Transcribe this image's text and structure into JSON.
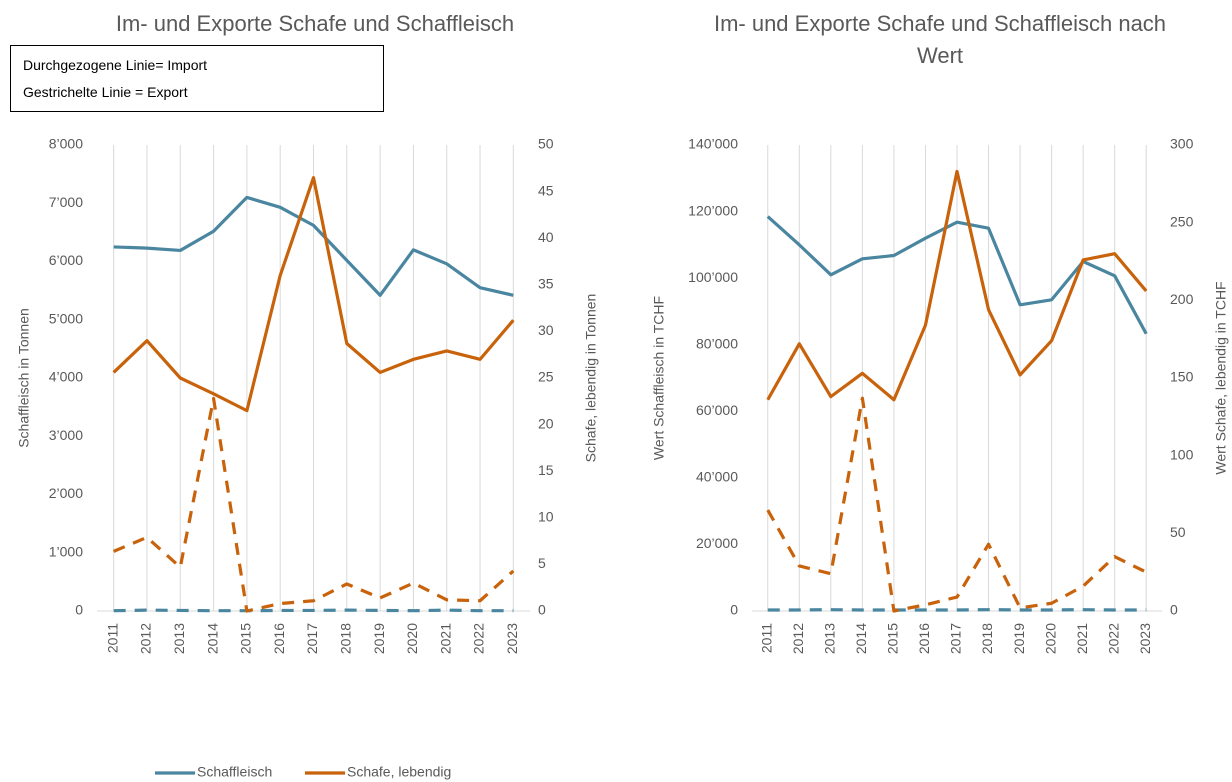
{
  "chart_data": [
    {
      "type": "line",
      "title": "Im- und Exporte Schafe und Schaffleisch",
      "annotations": [
        "Durchgezogene Linie= Import",
        "Gestrichelte Linie = Export"
      ],
      "y_label": "Schaffleisch in Tonnen",
      "y2_label": "Schafe, lebendig in Tonnen",
      "categories": [
        "2011",
        "2012",
        "2013",
        "2014",
        "2015",
        "2016",
        "2017",
        "2018",
        "2019",
        "2020",
        "2021",
        "2022",
        "2023"
      ],
      "ylim": [
        0,
        8000
      ],
      "yticks": [
        0,
        {
          "value": 1000,
          "label": "1’000"
        },
        {
          "value": 2000,
          "label": "2’000"
        },
        {
          "value": 3000,
          "label": "3’000"
        },
        {
          "value": 4000,
          "label": "4’000"
        },
        {
          "value": 5000,
          "label": "5’000"
        },
        {
          "value": 6000,
          "label": "6’000"
        },
        {
          "value": 7000,
          "label": "7’000"
        },
        {
          "value": 8000,
          "label": "8’000"
        }
      ],
      "y2lim": [
        0,
        50
      ],
      "y2ticks": [
        0,
        5,
        10,
        15,
        20,
        25,
        30,
        35,
        40,
        45,
        50
      ],
      "legend": "bottom",
      "grid": true,
      "series": [
        {
          "name": "Schaffleisch",
          "color": "#4a86a0",
          "dashed": false,
          "values": [
            6250,
            6230,
            6190,
            6520,
            7100,
            6930,
            6620,
            6020,
            5420,
            6200,
            5960,
            5550,
            5420
          ]
        },
        {
          "name": "Schaffleisch",
          "color": "#4a86a0",
          "dashed": true,
          "values": [
            5,
            15,
            10,
            5,
            5,
            10,
            10,
            15,
            10,
            5,
            15,
            5,
            5
          ]
        },
        {
          "name": "Schafe, lebendig",
          "color": "#c8620b",
          "dashed": false,
          "axis": "y2",
          "values": [
            25.6,
            29,
            25,
            23.3,
            21.5,
            36,
            46.5,
            28.7,
            25.6,
            27,
            27.9,
            27,
            31.2
          ]
        },
        {
          "name": "Schafe, lebendig",
          "color": "#c8620b",
          "dashed": true,
          "axis": "y2",
          "values": [
            6.4,
            7.9,
            4.7,
            22.8,
            0,
            0.8,
            1.1,
            2.9,
            1.4,
            3,
            1.2,
            1.1,
            4.3
          ]
        }
      ]
    },
    {
      "type": "line",
      "title": "Im- und Exporte Schafe und Schaffleisch nach Wert",
      "y_label": "Wert Schaffleisch in TCHF",
      "y2_label": "Wert Schafe, lebendig in TCHF",
      "categories": [
        "2011",
        "2012",
        "2013",
        "2014",
        "2015",
        "2016",
        "2017",
        "2018",
        "2019",
        "2020",
        "2021",
        "2022",
        "2023"
      ],
      "ylim": [
        0,
        140000
      ],
      "yticks": [
        0,
        {
          "value": 20000,
          "label": "20’000"
        },
        {
          "value": 40000,
          "label": "40’000"
        },
        {
          "value": 60000,
          "label": "60’000"
        },
        {
          "value": 80000,
          "label": "80’000"
        },
        {
          "value": 100000,
          "label": "100’000"
        },
        {
          "value": 120000,
          "label": "120’000"
        },
        {
          "value": 140000,
          "label": "140’000"
        }
      ],
      "y2lim": [
        0,
        300
      ],
      "y2ticks": [
        0,
        50,
        100,
        150,
        200,
        250,
        300
      ],
      "grid": true,
      "series": [
        {
          "name": "Schaffleisch",
          "color": "#4a86a0",
          "dashed": false,
          "values": [
            118500,
            110000,
            101000,
            105800,
            106800,
            112000,
            116800,
            115000,
            92000,
            93500,
            105000,
            100700,
            83300
          ]
        },
        {
          "name": "Schaffleisch",
          "color": "#4a86a0",
          "dashed": true,
          "values": [
            300,
            300,
            400,
            300,
            300,
            300,
            300,
            400,
            300,
            300,
            400,
            300,
            300
          ]
        },
        {
          "name": "Schafe, lebendig",
          "color": "#c8620b",
          "dashed": false,
          "axis": "y2",
          "values": [
            136,
            172,
            138,
            153,
            136,
            184,
            283,
            194,
            152,
            174,
            226,
            230,
            206
          ]
        },
        {
          "name": "Schafe, lebendig",
          "color": "#c8620b",
          "dashed": true,
          "axis": "y2",
          "values": [
            65,
            29,
            24,
            137,
            0,
            4,
            9,
            43,
            2,
            5,
            16,
            35,
            25
          ]
        }
      ]
    }
  ]
}
